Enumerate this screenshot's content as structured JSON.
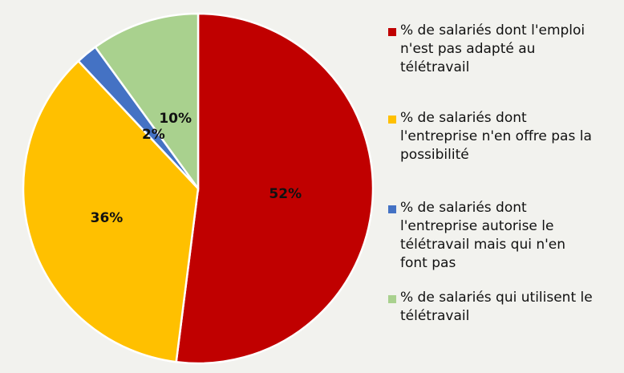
{
  "chart_data": {
    "type": "pie",
    "start_angle_deg": 0,
    "direction": "clockwise",
    "slices": [
      {
        "label": "% de salariés dont l'emploi n'est pas adapté au télétravail",
        "value": 52,
        "display": "52%",
        "color": "#c00000"
      },
      {
        "label": "% de salariés dont l'entreprise n'en offre pas la possibilité",
        "value": 36,
        "display": "36%",
        "color": "#ffc000"
      },
      {
        "label": "% de salariés dont l'entreprise autorise le télétravail mais qui n'en font pas",
        "value": 2,
        "display": "2%",
        "color": "#4472c4"
      },
      {
        "label": "% de salariés qui utilisent le télétravail",
        "value": 10,
        "display": "10%",
        "color": "#a9d18e"
      }
    ],
    "legend": {
      "position": "right",
      "items": [
        [
          "% de salariés dont l'emploi",
          "n'est pas adapté au",
          "télétravail"
        ],
        [
          "% de salariés dont",
          "l'entreprise n'en offre pas la",
          "possibilité"
        ],
        [
          "% de salariés dont",
          "l'entreprise autorise le",
          "télétravail mais qui n'en",
          "font pas"
        ],
        [
          "% de salariés qui utilisent le",
          "télétravail"
        ]
      ]
    }
  }
}
